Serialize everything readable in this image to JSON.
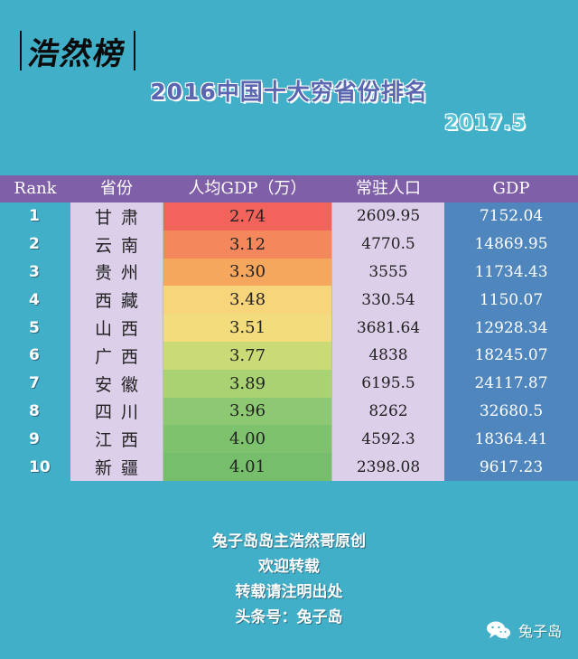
{
  "brand": {
    "text": "浩然榜"
  },
  "title": "2016中国十大穷省份排名",
  "date": "2017.5",
  "table": {
    "headers": [
      "Rank",
      "省份",
      "人均GDP（万）",
      "常驻人口",
      "GDP"
    ],
    "rows": [
      {
        "rank": "1",
        "province": "甘肃",
        "per_capita": "2.74",
        "population": "2609.95",
        "gdp": "7152.04"
      },
      {
        "rank": "2",
        "province": "云南",
        "per_capita": "3.12",
        "population": "4770.5",
        "gdp": "14869.95"
      },
      {
        "rank": "3",
        "province": "贵州",
        "per_capita": "3.30",
        "population": "3555",
        "gdp": "11734.43"
      },
      {
        "rank": "4",
        "province": "西藏",
        "per_capita": "3.48",
        "population": "330.54",
        "gdp": "1150.07"
      },
      {
        "rank": "5",
        "province": "山西",
        "per_capita": "3.51",
        "population": "3681.64",
        "gdp": "12928.34"
      },
      {
        "rank": "6",
        "province": "广西",
        "per_capita": "3.77",
        "population": "4838",
        "gdp": "18245.07"
      },
      {
        "rank": "7",
        "province": "安徽",
        "per_capita": "3.89",
        "population": "6195.5",
        "gdp": "24117.87"
      },
      {
        "rank": "8",
        "province": "四川",
        "per_capita": "3.96",
        "population": "8262",
        "gdp": "32680.5"
      },
      {
        "rank": "9",
        "province": "江西",
        "per_capita": "4.00",
        "population": "4592.3",
        "gdp": "18364.41"
      },
      {
        "rank": "10",
        "province": "新疆",
        "per_capita": "4.01",
        "population": "2398.08",
        "gdp": "9617.23"
      }
    ],
    "per_capita_colors": [
      "#F2635B",
      "#F5875D",
      "#F6A75E",
      "#F7D57B",
      "#F2DC7C",
      "#C9DA77",
      "#A9D273",
      "#8DC972",
      "#7EC26E",
      "#76BE6C"
    ]
  },
  "footer": {
    "lines": [
      "兔子岛岛主浩然哥原创",
      "欢迎转载",
      "转载请注明出处",
      "头条号：兔子岛"
    ]
  },
  "watermark": {
    "icon": "wechat-icon",
    "label": "兔子岛"
  }
}
